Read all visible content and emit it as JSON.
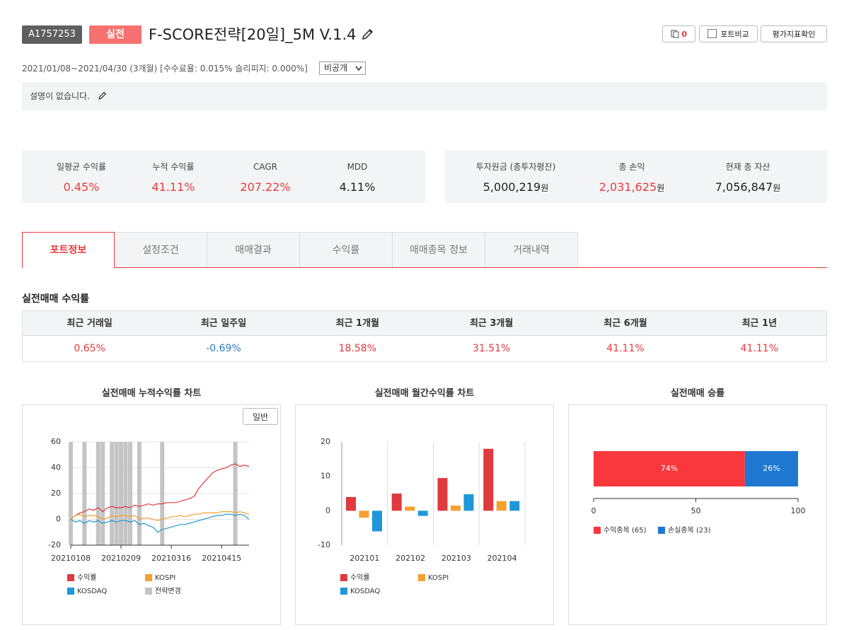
{
  "header": {
    "id": "A1757253",
    "badge": "실전",
    "title": "F-SCORE전략[20일]_5M V.1.4",
    "copy_count": "0",
    "buttons": [
      "포트비교",
      "평가지표확인"
    ],
    "period": "2021/01/08~2021/04/30 (3개월) [수수료율: 0.015% 슬리피지: 0.000%]",
    "visibility": "비공개",
    "description": "설명이 없습니다."
  },
  "summary": {
    "left": [
      {
        "label": "일평균 수익률",
        "value": "0.45%",
        "color": "#ee3b3f"
      },
      {
        "label": "누적 수익률",
        "value": "41.11%",
        "color": "#ee3b3f"
      },
      {
        "label": "CAGR",
        "value": "207.22%",
        "color": "#ee3b3f"
      },
      {
        "label": "MDD",
        "value": "4.11%",
        "color": "#222222"
      }
    ],
    "right": [
      {
        "label": "투자원금 (총투자평잔)",
        "value": "5,000,219",
        "unit": "원",
        "color": "#222222"
      },
      {
        "label": "총 손익",
        "value": "2,031,625",
        "unit": "원",
        "color": "#ee3b3f"
      },
      {
        "label": "현재 총 자산",
        "value": "7,056,847",
        "unit": "원",
        "color": "#222222"
      }
    ]
  },
  "tabs": {
    "items": [
      "포트정보",
      "설정조건",
      "매매결과",
      "수익률",
      "매매종목 정보",
      "거래내역"
    ],
    "active": 0
  },
  "returns": {
    "title": "실전매매 수익률",
    "headers": [
      "최근 거래일",
      "최근 일주일",
      "최근 1개월",
      "최근 3개월",
      "최근 6개월",
      "최근 1년"
    ],
    "values": [
      "0.65%",
      "-0.69%",
      "18.58%",
      "31.51%",
      "41.11%",
      "41.11%"
    ]
  },
  "chart_data": [
    {
      "type": "line",
      "title": "실전매매 누적수익률 차트",
      "button": "일반",
      "x": [
        "20210108",
        "20210112",
        "20210114",
        "20210118",
        "20210120",
        "20210122",
        "20210126",
        "20210128",
        "20210201",
        "20210203",
        "20210205",
        "20210209",
        "20210215",
        "20210217",
        "20210219",
        "20210223",
        "20210225",
        "20210302",
        "20210304",
        "20210308",
        "20210310",
        "20210312",
        "20210316",
        "20210318",
        "20210322",
        "20210324",
        "20210326",
        "20210330",
        "20210401",
        "20210405",
        "20210407",
        "20210409",
        "20210413",
        "20210415",
        "20210419",
        "20210421",
        "20210423",
        "20210427",
        "20210429",
        "20210430"
      ],
      "xticks": [
        "20210108",
        "20210209",
        "20210316",
        "20210415"
      ],
      "ylim": [
        -20,
        60
      ],
      "yticks": [
        -20,
        0,
        20,
        40,
        60
      ],
      "grid": true,
      "series": [
        {
          "name": "수익률",
          "color": "#e0393e",
          "values": [
            0,
            3,
            5,
            6,
            8,
            7,
            9,
            6,
            9,
            10,
            9,
            9,
            10,
            9,
            11,
            10,
            11,
            12,
            11,
            12,
            12,
            13,
            13,
            13,
            14,
            15,
            16,
            18,
            24,
            28,
            32,
            36,
            38,
            39,
            40,
            42,
            43,
            41,
            42,
            41
          ]
        },
        {
          "name": "KOSPI",
          "color": "#f5a030",
          "values": [
            0,
            3,
            4,
            2,
            3,
            3,
            2,
            0,
            1,
            3,
            2,
            3,
            3,
            2,
            3,
            0,
            1,
            1,
            0,
            -1,
            0,
            1,
            2,
            2,
            3,
            2,
            3,
            4,
            4,
            5,
            5,
            5,
            5,
            6,
            6,
            6,
            5,
            6,
            5,
            4
          ]
        },
        {
          "name": "KOSDAQ",
          "color": "#1e98d8",
          "values": [
            0,
            -2,
            -1,
            -3,
            -1,
            -2,
            -1,
            -3,
            -2,
            -1,
            -2,
            -1,
            -1,
            -2,
            -1,
            -4,
            -3,
            -5,
            -6,
            -10,
            -8,
            -7,
            -6,
            -5,
            -4,
            -4,
            -3,
            -2,
            -1,
            0,
            1,
            2,
            3,
            3,
            4,
            4,
            3,
            4,
            3,
            0
          ]
        }
      ],
      "markers": {
        "name": "전략변경",
        "color": "#c4c4c4",
        "x": [
          "20210108",
          "20210118",
          "20210126",
          "20210128",
          "20210203",
          "20210205",
          "20210209",
          "20210215",
          "20210217",
          "20210223",
          "20210310",
          "20210423"
        ]
      }
    },
    {
      "type": "bar",
      "title": "실전매매 월간수익률 차트",
      "categories": [
        "202101",
        "202102",
        "202103",
        "202104"
      ],
      "ylim": [
        -10,
        20
      ],
      "yticks": [
        -10,
        0,
        10,
        20
      ],
      "series": [
        {
          "name": "수익률",
          "color": "#e0393e",
          "values": [
            4,
            5,
            9.5,
            18
          ]
        },
        {
          "name": "KOSPI",
          "color": "#f5a030",
          "values": [
            -2,
            1.2,
            1.5,
            2.8
          ]
        },
        {
          "name": "KOSDAQ",
          "color": "#1e98d8",
          "values": [
            -6,
            -1.5,
            4.8,
            2.8
          ]
        }
      ]
    },
    {
      "type": "stacked_hbar",
      "title": "실전매매 승률",
      "xlim": [
        0,
        100
      ],
      "xticks": [
        0,
        50,
        100
      ],
      "series": [
        {
          "name": "수익종목 (65)",
          "color": "#f8383d",
          "values": [
            74
          ],
          "value_labels": [
            "74%"
          ]
        },
        {
          "name": "손실종목 (23)",
          "color": "#1e78d0",
          "values": [
            26
          ],
          "value_labels": [
            "26%"
          ]
        }
      ]
    }
  ]
}
